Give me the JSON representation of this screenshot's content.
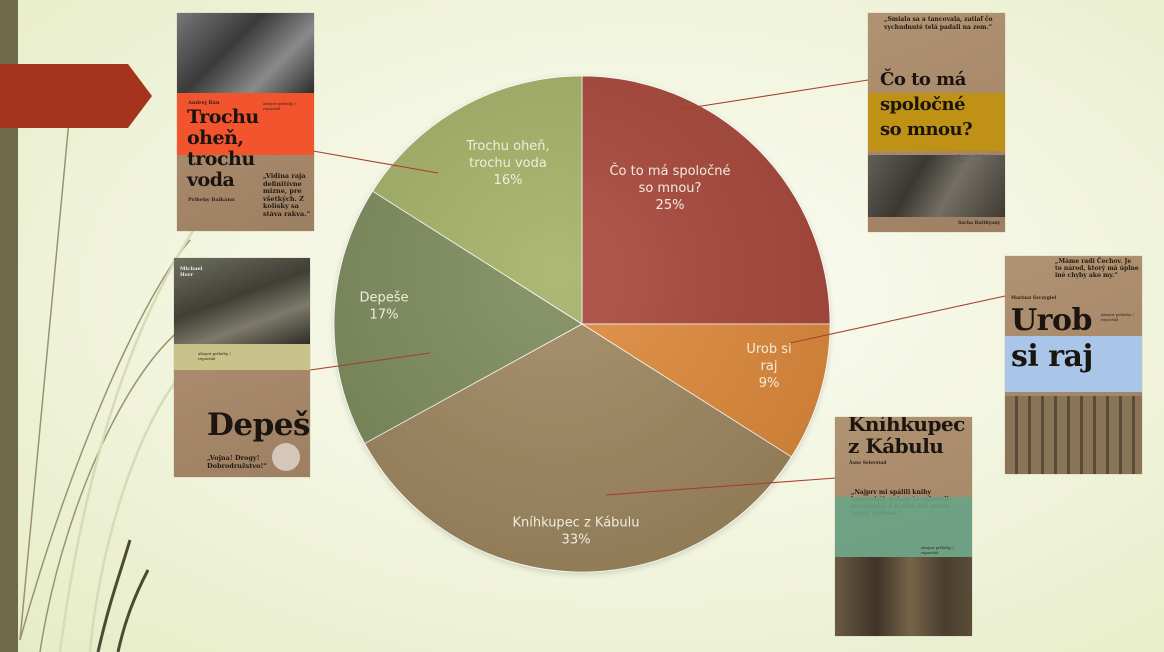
{
  "chart_data": {
    "type": "pie",
    "title": "",
    "slices": [
      {
        "label": "Čo to má spoločné so mnou?",
        "value": 25,
        "pct_label": "25%",
        "color": "#a9473b"
      },
      {
        "label": "Urob si raj",
        "value": 9,
        "pct_label": "9%",
        "color": "#e08a3b"
      },
      {
        "label": "Kníhkupec z Kábulu",
        "value": 33,
        "pct_label": "33%",
        "color": "#9f8760"
      },
      {
        "label": "Depeše",
        "value": 17,
        "pct_label": "17%",
        "color": "#7d8b5c"
      },
      {
        "label": "Trochu oheň, trochu voda",
        "value": 16,
        "pct_label": "16%",
        "color": "#a4b166"
      }
    ],
    "colors": {
      "leader": "#a54030",
      "label_text": "#f1ecdc"
    }
  },
  "covers": {
    "trochu": {
      "author": "Andrej Bán",
      "title_lines": [
        "Trochu",
        "oheň,",
        "trochu",
        "voda"
      ],
      "subtitle": "Príbehy Balkánu",
      "quote": "„Vidina raja definitívne mizne, pre všetkých. Z kolísky sa stáva rakva.“",
      "series": "absynt príbehy / reportáž"
    },
    "depese": {
      "author": "Michael Herr",
      "title": "Depeše",
      "quote": "„Vojna! Drogy! Dobrodružstvo!“",
      "series": "absynt príbehy / reportáž"
    },
    "coto": {
      "quote": "„Smiala sa a tancovala, zatiaľ čo vychudnuté telá padali na zem.“",
      "title_lines": [
        "Čo to má",
        "spoločné",
        "so mnou?"
      ],
      "series": "absynt príbehy / reportáž",
      "author": "Sacha Batthyany"
    },
    "urob": {
      "quote": "„Máme radi Čechov. Je to národ, ktorý má úplne iné chyby ako my.“",
      "author": "Mariusz Szczygieł",
      "title_lines": [
        "Urob",
        "si raj"
      ],
      "series": "absynt príbehy / reportáž"
    },
    "knih": {
      "title_lines": [
        "Kníhkupec",
        "z Kábulu"
      ],
      "author": "Åsne Seierstad",
      "quote": "„Najprv mi spálili knihy komunisti, potom tu rabovali mudžáhidi a potom ich znova spálil Taliban.“",
      "series": "absynt príbehy / reportáž"
    }
  }
}
